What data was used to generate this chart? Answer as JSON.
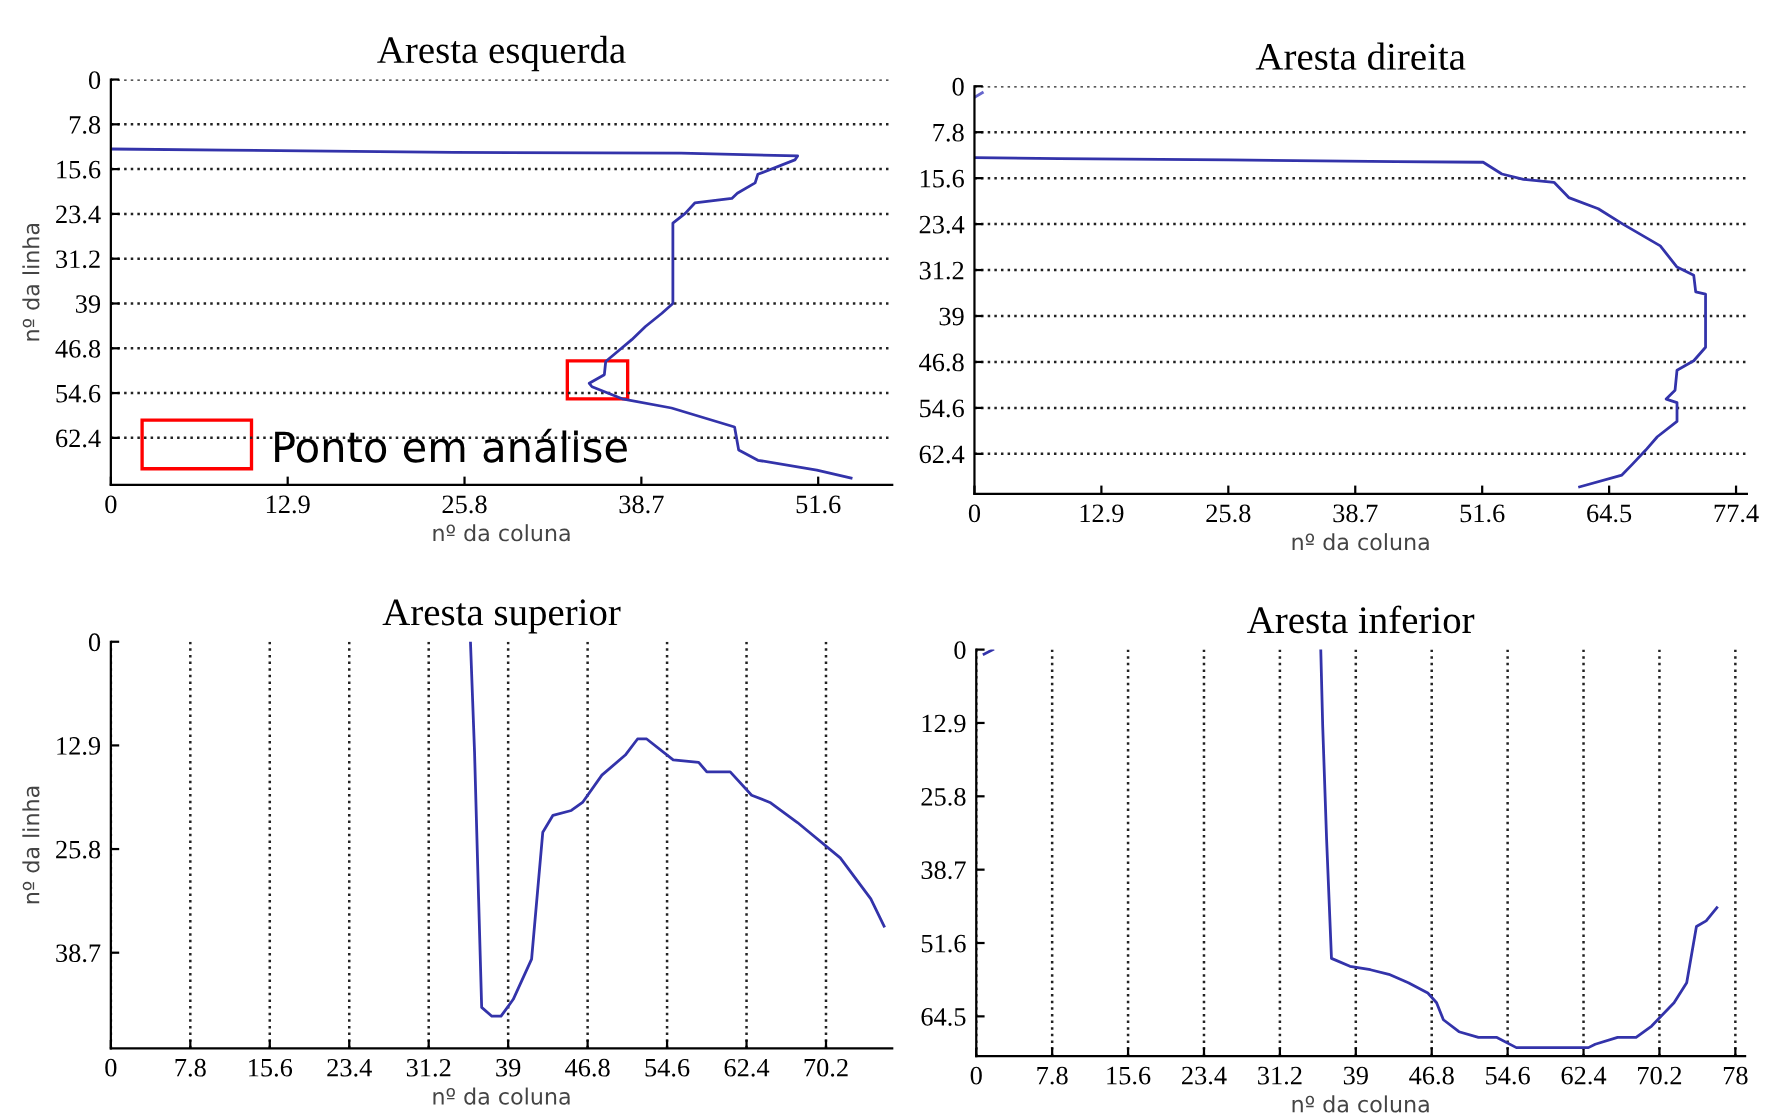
{
  "chart_data": [
    {
      "type": "line",
      "title": "Aresta esquerda",
      "xlabel": "nº da coluna",
      "ylabel": "nº da linha",
      "xlim": [
        0,
        57
      ],
      "ylim": [
        70.6,
        0
      ],
      "xticks": [
        0,
        12.9,
        25.8,
        38.7,
        51.6
      ],
      "yticks": [
        0,
        7.8,
        15.6,
        23.4,
        31.2,
        39,
        46.8,
        54.6,
        62.4
      ],
      "grid": "y",
      "line_style": "solid",
      "series": [
        {
          "color": "#3333aa",
          "x": [
            0,
            8.3,
            25.0,
            41.6,
            50.1,
            49.9,
            47.2,
            47.0,
            45.7,
            45.3,
            42.6,
            41.9,
            41.0,
            41.0,
            40.2,
            39.0,
            38.0,
            37.1,
            36.1,
            36.0,
            34.9,
            35.1,
            37.3,
            40.9,
            45.5,
            45.8,
            47.2,
            51.5,
            54.0
          ],
          "values": [
            12.1,
            12.3,
            12.7,
            12.8,
            13.3,
            14.0,
            16.5,
            18.0,
            19.8,
            20.7,
            21.5,
            23.3,
            25.0,
            39.0,
            40.7,
            43.0,
            45.3,
            47.1,
            49.1,
            51.4,
            52.9,
            53.5,
            55.6,
            57.2,
            60.5,
            64.5,
            66.3,
            68.0,
            69.4
          ]
        }
      ],
      "annotations": [
        {
          "text": "Ponto em análise",
          "x": 35.5,
          "y": 52.3
        }
      ]
    },
    {
      "type": "line",
      "title": "Aresta direita",
      "xlabel": "nº da coluna",
      "xlim": [
        0,
        78.5
      ],
      "ylim": [
        69.2,
        0
      ],
      "xticks": [
        0,
        12.9,
        25.8,
        38.7,
        51.6,
        64.5,
        77.4
      ],
      "yticks": [
        0,
        7.8,
        15.6,
        23.4,
        31.2,
        39,
        46.8,
        54.6,
        62.4
      ],
      "grid": "y",
      "line_style": "solid",
      "series": [
        {
          "color": "#3333aa",
          "x": [
            0,
            8.6,
            25.8,
            42.8,
            51.7,
            53.6,
            55.8,
            58.9,
            60.4,
            63.4,
            65.9,
            69.7,
            71.4,
            73.1,
            73.3,
            74.3,
            74.3,
            73.1,
            71.4,
            71.2,
            70.3,
            71.4,
            71.4,
            69.4,
            68.2,
            66.9,
            65.8,
            61.5
          ],
          "values": [
            12.1,
            12.3,
            12.5,
            12.8,
            12.9,
            14.9,
            15.8,
            16.3,
            18.9,
            20.8,
            23.4,
            27.1,
            30.7,
            32.1,
            34.9,
            35.3,
            44.3,
            46.6,
            48.2,
            51.6,
            53.1,
            53.7,
            56.9,
            59.5,
            61.8,
            64.1,
            66.0,
            68.0
          ]
        },
        {
          "color": "#6666cc",
          "x": [
            0,
            0.8
          ],
          "values": [
            1.9,
            1.1
          ]
        }
      ]
    },
    {
      "type": "line",
      "title": "Aresta superior",
      "xlabel": "nº da coluna",
      "ylabel": "nº da linha",
      "xlim": [
        0,
        76.7
      ],
      "ylim": [
        50.6,
        0
      ],
      "xticks": [
        0,
        7.8,
        15.6,
        23.4,
        31.2,
        39,
        46.8,
        54.6,
        62.4,
        70.2
      ],
      "yticks": [
        0,
        12.9,
        25.8,
        38.7
      ],
      "grid": "x",
      "line_style": "solid",
      "series": [
        {
          "color": "#3333aa",
          "x": [
            35.3,
            35.7,
            36.1,
            36.4,
            37.4,
            38.3,
            39.5,
            41.3,
            42.4,
            43.4,
            45.2,
            46.3,
            48.2,
            50.5,
            51.7,
            52.6,
            55.2,
            57.7,
            58.5,
            60.8,
            62.9,
            64.7,
            67.4,
            71.6,
            74.6,
            75.9
          ],
          "values": [
            0,
            13.7,
            32.0,
            45.5,
            46.6,
            46.6,
            44.5,
            39.5,
            23.7,
            21.6,
            21.0,
            20.0,
            16.6,
            14.1,
            12.1,
            12.1,
            14.7,
            15.0,
            16.2,
            16.2,
            19.1,
            20.0,
            22.5,
            26.9,
            32.0,
            35.4
          ]
        }
      ]
    },
    {
      "type": "line",
      "title": "Aresta inferior",
      "xlabel": "nº da coluna",
      "xlim": [
        0,
        79
      ],
      "ylim": [
        71.5,
        0
      ],
      "xticks": [
        0,
        7.8,
        15.6,
        23.4,
        31.2,
        39,
        46.8,
        54.6,
        62.4,
        70.2,
        78
      ],
      "yticks": [
        0,
        12.9,
        25.8,
        38.7,
        51.6,
        64.5
      ],
      "grid": "x",
      "line_style": "solid",
      "series": [
        {
          "color": "#3333aa",
          "x": [
            0.8,
            1.7
          ],
          "values": [
            0.8,
            0
          ]
        },
        {
          "color": "#3333aa",
          "x": [
            35.4,
            35.6,
            36.0,
            36.5,
            38.4,
            40.5,
            42.4,
            44.4,
            46.4,
            47.3,
            48.0,
            49.6,
            51.6,
            53.5,
            55.5,
            62.9,
            63.6,
            65.9,
            67.8,
            69.4,
            71.7,
            73.0,
            74.0,
            75.0,
            76.1
          ],
          "values": [
            0,
            13.5,
            33.4,
            54.3,
            55.7,
            56.3,
            57.1,
            58.6,
            60.4,
            62.1,
            65.1,
            67.2,
            68.2,
            68.2,
            70.0,
            70.0,
            69.4,
            68.2,
            68.2,
            66.2,
            62.1,
            58.6,
            48.7,
            47.7,
            45.4
          ]
        }
      ]
    }
  ]
}
